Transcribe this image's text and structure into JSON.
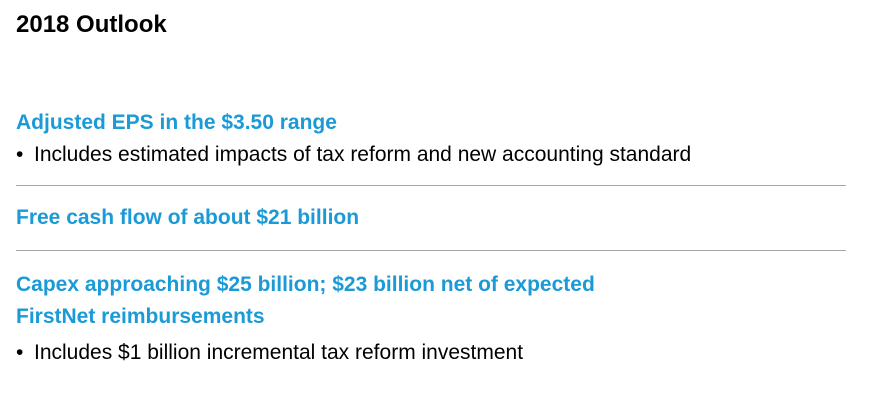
{
  "title": "2018 Outlook",
  "accent_color": "#1a9ad6",
  "divider_color": "#a6a6a6",
  "sections": [
    {
      "heading_lines": [
        "Adjusted EPS in the $3.50 range"
      ],
      "bullets": [
        "Includes estimated impacts of tax reform and new accounting standard"
      ]
    },
    {
      "heading_lines": [
        "Free cash flow of about $21 billion"
      ],
      "bullets": []
    },
    {
      "heading_lines": [
        "Capex approaching $25 billion; $23 billion net of expected",
        "FirstNet reimbursements"
      ],
      "bullets": [
        "Includes $1 billion incremental tax reform investment"
      ]
    }
  ],
  "bullet_glyph": "•"
}
